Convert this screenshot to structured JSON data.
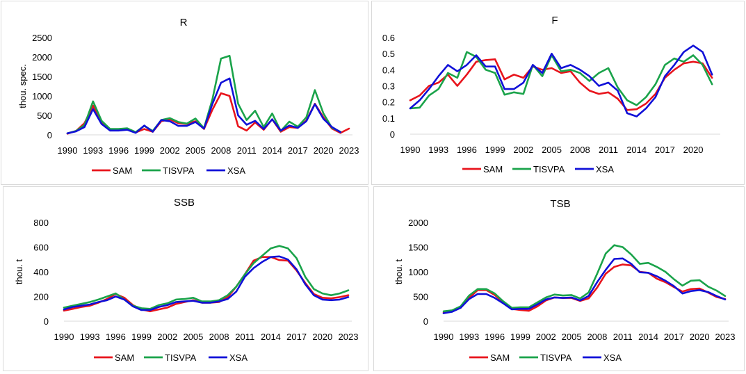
{
  "colors": {
    "SAM": "#e8141c",
    "TISVPA": "#1aa34a",
    "XSA": "#1010d8"
  },
  "chart_data": [
    {
      "type": "line",
      "title": "R",
      "ylabel": "thou. spec.",
      "ylim": [
        0,
        2500
      ],
      "yticks": [
        0,
        500,
        1000,
        1500,
        2000,
        2500
      ],
      "ytick_labels": [
        "0",
        "500",
        "1000",
        "1500",
        "2000",
        "2500"
      ],
      "xlim": [
        1990,
        2023
      ],
      "xticks": [
        1990,
        1993,
        1996,
        1999,
        2002,
        2005,
        2008,
        2011,
        2014,
        2017,
        2020,
        2023
      ],
      "xtick_labels": [
        "1990",
        "1993",
        "1996",
        "1999",
        "2002",
        "2005",
        "2008",
        "2011",
        "2014",
        "2017",
        "2020",
        "2023"
      ],
      "legend": [
        "SAM",
        "TISVPA",
        "XSA"
      ],
      "series": [
        {
          "name": "SAM",
          "x": [
            1990,
            1991,
            1992,
            1993,
            1994,
            1995,
            1996,
            1997,
            1998,
            1999,
            2000,
            2001,
            2002,
            2003,
            2004,
            2005,
            2006,
            2007,
            2008,
            2009,
            2010,
            2011,
            2012,
            2013,
            2014,
            2015,
            2016,
            2017,
            2018,
            2019,
            2020,
            2021,
            2022,
            2023
          ],
          "values": [
            30,
            100,
            300,
            750,
            300,
            130,
            130,
            150,
            60,
            150,
            80,
            350,
            400,
            300,
            280,
            350,
            150,
            650,
            1070,
            1000,
            220,
            110,
            320,
            130,
            400,
            80,
            200,
            180,
            370,
            800,
            450,
            160,
            50,
            160
          ]
        },
        {
          "name": "TISVPA",
          "x": [
            1990,
            1991,
            1992,
            1993,
            1994,
            1995,
            1996,
            1997,
            1998,
            1999,
            2000,
            2001,
            2002,
            2003,
            2004,
            2005,
            2006,
            2007,
            2008,
            2009,
            2010,
            2011,
            2012,
            2013,
            2014,
            2015,
            2016,
            2017,
            2018,
            2019,
            2020,
            2021,
            2022
          ],
          "values": [
            40,
            100,
            250,
            860,
            360,
            150,
            150,
            170,
            70,
            230,
            100,
            380,
            430,
            330,
            290,
            420,
            170,
            920,
            1960,
            2030,
            800,
            380,
            620,
            200,
            550,
            100,
            340,
            210,
            450,
            1150,
            550,
            180,
            80
          ]
        },
        {
          "name": "XSA",
          "x": [
            1990,
            1991,
            1992,
            1993,
            1994,
            1995,
            1996,
            1997,
            1998,
            1999,
            2000,
            2001,
            2002,
            2003,
            2004,
            2005,
            2006,
            2007,
            2008,
            2009,
            2010,
            2011,
            2012,
            2013,
            2014,
            2015,
            2016,
            2017,
            2018,
            2019,
            2020,
            2021,
            2022
          ],
          "values": [
            40,
            90,
            200,
            660,
            280,
            110,
            110,
            130,
            50,
            240,
            80,
            380,
            350,
            230,
            230,
            330,
            160,
            800,
            1340,
            1450,
            500,
            260,
            360,
            150,
            400,
            110,
            240,
            180,
            350,
            790,
            410,
            200,
            70
          ]
        }
      ]
    },
    {
      "type": "line",
      "title": "F",
      "ylabel": "",
      "ylim": [
        0,
        0.6
      ],
      "yticks": [
        0,
        0.1,
        0.2,
        0.3,
        0.4,
        0.5,
        0.6
      ],
      "ytick_labels": [
        "0",
        "0.1",
        "0.2",
        "0.3",
        "0.4",
        "0.5",
        "0.6"
      ],
      "xlim": [
        1990,
        2022.5
      ],
      "xticks": [
        1990,
        1993,
        1996,
        1999,
        2002,
        2005,
        2008,
        2011,
        2014,
        2017,
        2020
      ],
      "xtick_labels": [
        "1990",
        "1993",
        "1996",
        "1999",
        "2002",
        "2005",
        "2008",
        "2011",
        "2014",
        "2017",
        "2020"
      ],
      "legend": [
        "SAM",
        "TISVPA",
        "XSA"
      ],
      "series": [
        {
          "name": "SAM",
          "x": [
            1990,
            1991,
            1992,
            1993,
            1994,
            1995,
            1996,
            1997,
            1998,
            1999,
            2000,
            2001,
            2002,
            2003,
            2004,
            2005,
            2006,
            2007,
            2008,
            2009,
            2010,
            2011,
            2012,
            2013,
            2014,
            2015,
            2016,
            2017,
            2018,
            2019,
            2020,
            2021,
            2022
          ],
          "values": [
            0.21,
            0.24,
            0.3,
            0.32,
            0.37,
            0.3,
            0.37,
            0.45,
            0.46,
            0.465,
            0.34,
            0.37,
            0.35,
            0.42,
            0.4,
            0.41,
            0.38,
            0.39,
            0.32,
            0.27,
            0.25,
            0.26,
            0.22,
            0.15,
            0.155,
            0.19,
            0.25,
            0.35,
            0.4,
            0.44,
            0.45,
            0.44,
            0.35
          ]
        },
        {
          "name": "TISVPA",
          "x": [
            1990,
            1991,
            1992,
            1993,
            1994,
            1995,
            1996,
            1997,
            1998,
            1999,
            2000,
            2001,
            2002,
            2003,
            2004,
            2005,
            2006,
            2007,
            2008,
            2009,
            2010,
            2011,
            2012,
            2013,
            2014,
            2015,
            2016,
            2017,
            2018,
            2019,
            2020,
            2021,
            2022
          ],
          "values": [
            0.16,
            0.165,
            0.24,
            0.28,
            0.38,
            0.35,
            0.51,
            0.48,
            0.4,
            0.38,
            0.245,
            0.26,
            0.25,
            0.43,
            0.36,
            0.49,
            0.39,
            0.4,
            0.38,
            0.33,
            0.38,
            0.41,
            0.29,
            0.21,
            0.18,
            0.23,
            0.31,
            0.43,
            0.47,
            0.45,
            0.49,
            0.43,
            0.31
          ]
        },
        {
          "name": "XSA",
          "x": [
            1990,
            1991,
            1992,
            1993,
            1994,
            1995,
            1996,
            1997,
            1998,
            1999,
            2000,
            2001,
            2002,
            2003,
            2004,
            2005,
            2006,
            2007,
            2008,
            2009,
            2010,
            2011,
            2012,
            2013,
            2014,
            2015,
            2016,
            2017,
            2018,
            2019,
            2020,
            2021,
            2022
          ],
          "values": [
            0.16,
            0.21,
            0.28,
            0.36,
            0.43,
            0.39,
            0.43,
            0.49,
            0.42,
            0.42,
            0.28,
            0.28,
            0.32,
            0.43,
            0.38,
            0.5,
            0.41,
            0.43,
            0.4,
            0.36,
            0.3,
            0.32,
            0.27,
            0.13,
            0.11,
            0.16,
            0.23,
            0.36,
            0.43,
            0.51,
            0.55,
            0.51,
            0.37
          ]
        }
      ]
    },
    {
      "type": "line",
      "title": "SSB",
      "ylabel": "thou. t",
      "ylim": [
        0,
        800
      ],
      "yticks": [
        0,
        200,
        400,
        600,
        800
      ],
      "ytick_labels": [
        "0",
        "200",
        "400",
        "600",
        "800"
      ],
      "xlim": [
        1990,
        2023
      ],
      "xticks": [
        1990,
        1993,
        1996,
        1999,
        2002,
        2005,
        2008,
        2011,
        2014,
        2017,
        2020,
        2023
      ],
      "xtick_labels": [
        "1990",
        "1993",
        "1996",
        "1999",
        "2002",
        "2005",
        "2008",
        "2011",
        "2014",
        "2017",
        "2020",
        "2023"
      ],
      "legend": [
        "SAM",
        "TISVPA",
        "XSA"
      ],
      "series": [
        {
          "name": "SAM",
          "x": [
            1990,
            1991,
            1992,
            1993,
            1994,
            1995,
            1996,
            1997,
            1998,
            1999,
            2000,
            2001,
            2002,
            2003,
            2004,
            2005,
            2006,
            2007,
            2008,
            2009,
            2010,
            2011,
            2012,
            2013,
            2014,
            2015,
            2016,
            2017,
            2018,
            2019,
            2020,
            2021,
            2022,
            2023
          ],
          "values": [
            85,
            100,
            115,
            125,
            150,
            180,
            220,
            190,
            130,
            95,
            80,
            95,
            110,
            140,
            155,
            170,
            150,
            150,
            155,
            195,
            280,
            380,
            490,
            520,
            520,
            495,
            490,
            410,
            310,
            220,
            190,
            185,
            195,
            210
          ]
        },
        {
          "name": "TISVPA",
          "x": [
            1990,
            1991,
            1992,
            1993,
            1994,
            1995,
            1996,
            1997,
            1998,
            1999,
            2000,
            2001,
            2002,
            2003,
            2004,
            2005,
            2006,
            2007,
            2008,
            2009,
            2010,
            2011,
            2012,
            2013,
            2014,
            2015,
            2016,
            2017,
            2018,
            2019,
            2020,
            2021,
            2022,
            2023
          ],
          "values": [
            110,
            125,
            140,
            155,
            175,
            200,
            225,
            175,
            125,
            105,
            100,
            130,
            145,
            175,
            180,
            190,
            160,
            160,
            170,
            210,
            280,
            380,
            470,
            530,
            590,
            610,
            590,
            510,
            360,
            260,
            225,
            210,
            225,
            250
          ]
        },
        {
          "name": "XSA",
          "x": [
            1990,
            1991,
            1992,
            1993,
            1994,
            1995,
            1996,
            1997,
            1998,
            1999,
            2000,
            2001,
            2002,
            2003,
            2004,
            2005,
            2006,
            2007,
            2008,
            2009,
            2010,
            2011,
            2012,
            2013,
            2014,
            2015,
            2016,
            2017,
            2018,
            2019,
            2020,
            2021,
            2022,
            2023
          ],
          "values": [
            95,
            115,
            125,
            135,
            155,
            170,
            200,
            175,
            120,
            90,
            90,
            115,
            130,
            155,
            160,
            165,
            150,
            150,
            160,
            180,
            240,
            360,
            430,
            480,
            520,
            525,
            500,
            420,
            300,
            210,
            175,
            170,
            175,
            195
          ]
        }
      ]
    },
    {
      "type": "line",
      "title": "TSB",
      "ylabel": "thou. t",
      "ylim": [
        0,
        2000
      ],
      "yticks": [
        0,
        500,
        1000,
        1500,
        2000
      ],
      "ytick_labels": [
        "0",
        "500",
        "1000",
        "1500",
        "2000"
      ],
      "xlim": [
        1990,
        2023
      ],
      "xticks": [
        1990,
        1993,
        1996,
        1999,
        2002,
        2005,
        2008,
        2011,
        2014,
        2017,
        2020,
        2023
      ],
      "xtick_labels": [
        "1990",
        "1993",
        "1996",
        "1999",
        "2002",
        "2005",
        "2008",
        "2011",
        "2014",
        "2017",
        "2020",
        "2023"
      ],
      "legend": [
        "SAM",
        "TISVPA",
        "XSA"
      ],
      "series": [
        {
          "name": "SAM",
          "x": [
            1990,
            1991,
            1992,
            1993,
            1994,
            1995,
            1996,
            1997,
            1998,
            1999,
            2000,
            2001,
            2002,
            2003,
            2004,
            2005,
            2006,
            2007,
            2008,
            2009,
            2010,
            2011,
            2012,
            2013,
            2014,
            2015,
            2016,
            2017,
            2018,
            2019,
            2020,
            2021,
            2022,
            2023
          ],
          "values": [
            170,
            200,
            270,
            470,
            630,
            630,
            530,
            380,
            250,
            225,
            210,
            300,
            420,
            480,
            470,
            470,
            410,
            460,
            680,
            960,
            1100,
            1150,
            1130,
            1000,
            980,
            860,
            790,
            690,
            600,
            650,
            660,
            580,
            490,
            450
          ]
        },
        {
          "name": "TISVPA",
          "x": [
            1990,
            1991,
            1992,
            1993,
            1994,
            1995,
            1996,
            1997,
            1998,
            1999,
            2000,
            2001,
            2002,
            2003,
            2004,
            2005,
            2006,
            2007,
            2008,
            2009,
            2010,
            2011,
            2012,
            2013,
            2014,
            2015,
            2016,
            2017,
            2018,
            2019,
            2020,
            2021,
            2022,
            2023
          ],
          "values": [
            200,
            220,
            300,
            520,
            650,
            650,
            560,
            400,
            270,
            280,
            280,
            380,
            480,
            540,
            520,
            530,
            460,
            580,
            960,
            1370,
            1540,
            1500,
            1350,
            1160,
            1180,
            1100,
            1000,
            850,
            720,
            820,
            830,
            700,
            620,
            510
          ]
        },
        {
          "name": "XSA",
          "x": [
            1990,
            1991,
            1992,
            1993,
            1994,
            1995,
            1996,
            1997,
            1998,
            1999,
            2000,
            2001,
            2002,
            2003,
            2004,
            2005,
            2006,
            2007,
            2008,
            2009,
            2010,
            2011,
            2012,
            2013,
            2014,
            2015,
            2016,
            2017,
            2018,
            2019,
            2020,
            2021,
            2022,
            2023
          ],
          "values": [
            160,
            190,
            270,
            450,
            550,
            550,
            470,
            360,
            240,
            250,
            250,
            340,
            440,
            480,
            470,
            480,
            420,
            510,
            790,
            1040,
            1260,
            1270,
            1160,
            990,
            980,
            910,
            820,
            710,
            560,
            610,
            630,
            590,
            510,
            440
          ]
        }
      ]
    }
  ]
}
